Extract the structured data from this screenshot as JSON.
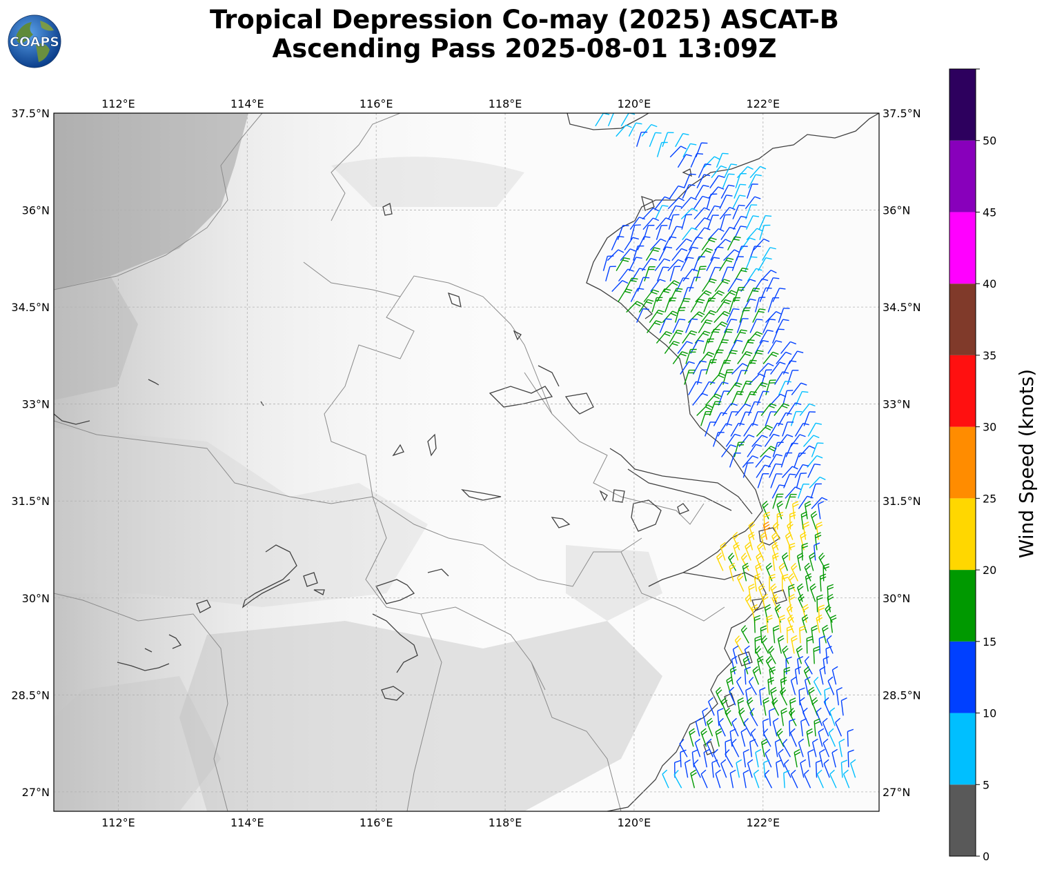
{
  "title": {
    "line1": "Tropical Depression Co-may (2025) ASCAT-B",
    "line2": "Ascending Pass 2025-08-01 13:09Z"
  },
  "logo": {
    "text": "COAPS",
    "icon": "globe-logo-icon"
  },
  "map": {
    "lon_range": [
      111.0,
      123.8
    ],
    "lat_range": [
      26.7,
      37.5
    ],
    "lon_ticks": [
      {
        "value": 112,
        "label": "112°E"
      },
      {
        "value": 114,
        "label": "114°E"
      },
      {
        "value": 116,
        "label": "116°E"
      },
      {
        "value": 118,
        "label": "118°E"
      },
      {
        "value": 120,
        "label": "120°E"
      },
      {
        "value": 122,
        "label": "122°E"
      }
    ],
    "lat_ticks": [
      {
        "value": 37.5,
        "label": "37.5°N"
      },
      {
        "value": 36,
        "label": "36°N"
      },
      {
        "value": 34.5,
        "label": "34.5°N"
      },
      {
        "value": 33,
        "label": "33°N"
      },
      {
        "value": 31.5,
        "label": "31.5°N"
      },
      {
        "value": 30,
        "label": "30°N"
      },
      {
        "value": 28.5,
        "label": "28.5°N"
      },
      {
        "value": 27,
        "label": "27°N"
      }
    ],
    "grid": true,
    "background": "grayscale terrain"
  },
  "colorbar": {
    "label": "Wind Speed (knots)",
    "ticks": [
      "0",
      "5",
      "10",
      "15",
      "20",
      "25",
      "30",
      "35",
      "40",
      "45",
      "50"
    ],
    "bins": [
      {
        "from": 0,
        "to": 5,
        "color": "#595959"
      },
      {
        "from": 5,
        "to": 10,
        "color": "#00bfff"
      },
      {
        "from": 10,
        "to": 15,
        "color": "#0040ff"
      },
      {
        "from": 15,
        "to": 20,
        "color": "#009900"
      },
      {
        "from": 20,
        "to": 25,
        "color": "#ffd700"
      },
      {
        "from": 25,
        "to": 30,
        "color": "#ff8c00"
      },
      {
        "from": 30,
        "to": 35,
        "color": "#ff1010"
      },
      {
        "from": 35,
        "to": 40,
        "color": "#803a2a"
      },
      {
        "from": 40,
        "to": 45,
        "color": "#ff00ff"
      },
      {
        "from": 45,
        "to": 50,
        "color": "#8800bb"
      },
      {
        "from": 50,
        "to": 55,
        "color": "#2d005e"
      }
    ]
  },
  "wind_data": {
    "swath": [
      {
        "lat": 37.3,
        "lon_west": 119.4,
        "lon_east": 119.9,
        "speed": 8
      },
      {
        "lat": 36.5,
        "lon_west": 121.0,
        "lon_east": 121.8,
        "speed": 12
      },
      {
        "lat": 36.0,
        "lon_west": 120.3,
        "lon_east": 121.9,
        "speed": 12
      },
      {
        "lat": 35.5,
        "lon_west": 119.7,
        "lon_east": 122.0,
        "speed": 13
      },
      {
        "lat": 35.0,
        "lon_west": 119.5,
        "lon_east": 122.1,
        "speed": 13
      },
      {
        "lat": 34.5,
        "lon_west": 119.8,
        "lon_east": 122.2,
        "speed": 17
      },
      {
        "lat": 34.0,
        "lon_west": 120.3,
        "lon_east": 122.3,
        "speed": 17
      },
      {
        "lat": 33.5,
        "lon_west": 120.7,
        "lon_east": 122.5,
        "speed": 16
      },
      {
        "lat": 33.0,
        "lon_west": 120.9,
        "lon_east": 122.6,
        "speed": 14
      },
      {
        "lat": 32.5,
        "lon_west": 121.1,
        "lon_east": 122.7,
        "speed": 13
      },
      {
        "lat": 32.0,
        "lon_west": 121.5,
        "lon_east": 122.8,
        "speed": 13
      },
      {
        "lat": 31.5,
        "lon_west": 122.2,
        "lon_east": 122.9,
        "speed": 13
      },
      {
        "lat": 31.0,
        "lon_west": 122.0,
        "lon_east": 122.9,
        "speed": 24
      },
      {
        "lat": 30.5,
        "lon_west": 121.3,
        "lon_east": 123.0,
        "speed": 20
      },
      {
        "lat": 30.0,
        "lon_west": 121.8,
        "lon_east": 123.0,
        "speed": 22
      },
      {
        "lat": 29.5,
        "lon_west": 121.9,
        "lon_east": 123.1,
        "speed": 22
      },
      {
        "lat": 29.0,
        "lon_west": 121.6,
        "lon_east": 123.1,
        "speed": 17
      },
      {
        "lat": 28.5,
        "lon_west": 121.5,
        "lon_east": 123.2,
        "speed": 15
      },
      {
        "lat": 28.0,
        "lon_west": 121.1,
        "lon_east": 123.3,
        "speed": 15
      },
      {
        "lat": 27.5,
        "lon_west": 120.8,
        "lon_east": 123.4,
        "speed": 13
      },
      {
        "lat": 27.0,
        "lon_west": 120.5,
        "lon_east": 123.5,
        "speed": 12
      }
    ]
  }
}
